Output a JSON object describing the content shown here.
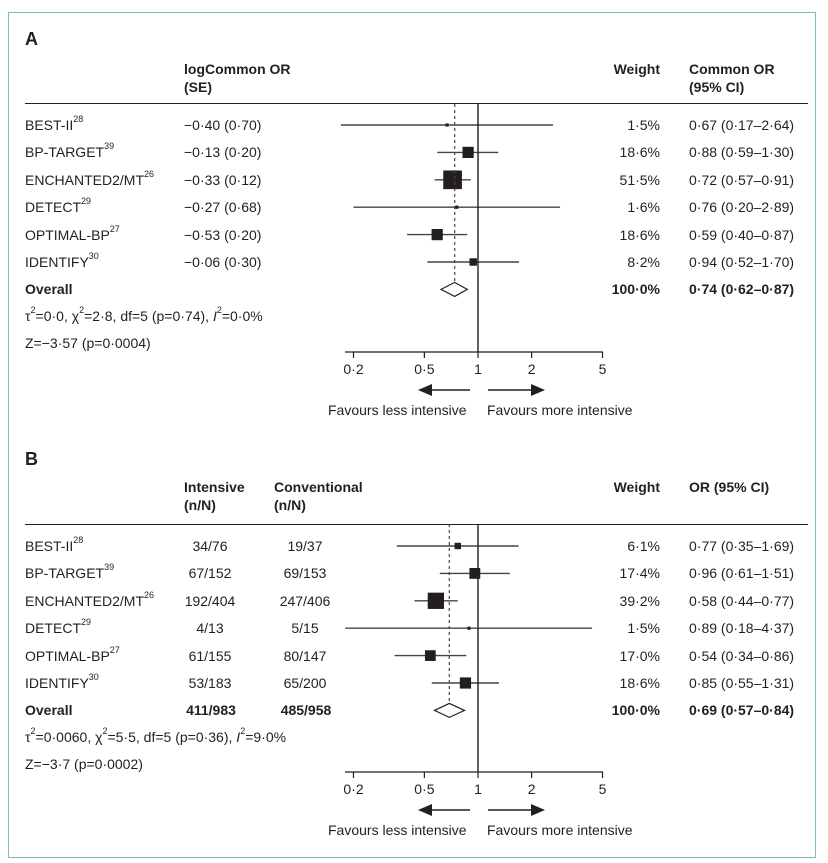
{
  "chart_data": [
    {
      "type": "forest",
      "panel_label": "A",
      "columns": {
        "estimate_header_line1": "logCommon OR",
        "estimate_header_line2": "(SE)",
        "weight_header": "Weight",
        "ci_header_line1": "Common OR",
        "ci_header_line2": "(95% CI)"
      },
      "studies": [
        {
          "name": "BEST-II",
          "ref": "28",
          "estimate": "−0·40 (0·70)",
          "weight": "1·5%",
          "weight_value": 1.5,
          "or_text": "0·67 (0·17–2·64)",
          "or": 0.67,
          "lo": 0.17,
          "hi": 2.64
        },
        {
          "name": "BP-TARGET",
          "ref": "39",
          "estimate": "−0·13 (0·20)",
          "weight": "18·6%",
          "weight_value": 18.6,
          "or_text": "0·88 (0·59–1·30)",
          "or": 0.88,
          "lo": 0.59,
          "hi": 1.3
        },
        {
          "name": "ENCHANTED2/MT",
          "ref": "26",
          "estimate": "−0·33 (0·12)",
          "weight": "51·5%",
          "weight_value": 51.5,
          "or_text": "0·72 (0·57–0·91)",
          "or": 0.72,
          "lo": 0.57,
          "hi": 0.91
        },
        {
          "name": "DETECT",
          "ref": "29",
          "estimate": "−0·27 (0·68)",
          "weight": "1·6%",
          "weight_value": 1.6,
          "or_text": "0·76 (0·20–2·89)",
          "or": 0.76,
          "lo": 0.2,
          "hi": 2.89
        },
        {
          "name": "OPTIMAL-BP",
          "ref": "27",
          "estimate": "−0·53 (0·20)",
          "weight": "18·6%",
          "weight_value": 18.6,
          "or_text": "0·59 (0·40–0·87)",
          "or": 0.59,
          "lo": 0.4,
          "hi": 0.87
        },
        {
          "name": "IDENTIFY",
          "ref": "30",
          "estimate": "−0·06 (0·30)",
          "weight": "8·2%",
          "weight_value": 8.2,
          "or_text": "0·94 (0·52–1·70)",
          "or": 0.94,
          "lo": 0.52,
          "hi": 1.7
        }
      ],
      "overall": {
        "label": "Overall",
        "weight": "100·0%",
        "or_text": "0·74 (0·62–0·87)",
        "or": 0.74,
        "lo": 0.62,
        "hi": 0.87
      },
      "heterogeneity": {
        "tau": "τ",
        "tau_val": "=0·0, ",
        "chi": "χ",
        "chi_val": "=2·8, df=5 (p=0·74), ",
        "i": "I",
        "i_val": "=0·0%"
      },
      "z_test": "Z=−3·57 (p=0·0004)",
      "x_axis": {
        "scale": "log",
        "ticks": [
          0.2,
          0.5,
          1,
          2,
          5
        ],
        "tick_labels": [
          "0·2",
          "0·5",
          "1",
          "2",
          "5"
        ],
        "xlim": [
          0.17,
          5
        ]
      },
      "favours_left": "Favours less intensive",
      "favours_right": "Favours more intensive"
    },
    {
      "type": "forest",
      "panel_label": "B",
      "columns": {
        "intensive_header_line1": "Intensive",
        "intensive_header_line2": "(n/N)",
        "conventional_header_line1": "Conventional",
        "conventional_header_line2": "(n/N)",
        "weight_header": "Weight",
        "ci_header": "OR (95% CI)"
      },
      "studies": [
        {
          "name": "BEST-II",
          "ref": "28",
          "intensive": "34/76",
          "conventional": "19/37",
          "weight": "6·1%",
          "weight_value": 6.1,
          "or_text": "0·77 (0·35–1·69)",
          "or": 0.77,
          "lo": 0.35,
          "hi": 1.69
        },
        {
          "name": "BP-TARGET",
          "ref": "39",
          "intensive": "67/152",
          "conventional": "69/153",
          "weight": "17·4%",
          "weight_value": 17.4,
          "or_text": "0·96 (0·61–1·51)",
          "or": 0.96,
          "lo": 0.61,
          "hi": 1.51
        },
        {
          "name": "ENCHANTED2/MT",
          "ref": "26",
          "intensive": "192/404",
          "conventional": "247/406",
          "weight": "39·2%",
          "weight_value": 39.2,
          "or_text": "0·58 (0·44–0·77)",
          "or": 0.58,
          "lo": 0.44,
          "hi": 0.77
        },
        {
          "name": "DETECT",
          "ref": "29",
          "intensive": "4/13",
          "conventional": "5/15",
          "weight": "1·5%",
          "weight_value": 1.5,
          "or_text": "0·89 (0·18–4·37)",
          "or": 0.89,
          "lo": 0.18,
          "hi": 4.37
        },
        {
          "name": "OPTIMAL-BP",
          "ref": "27",
          "intensive": "61/155",
          "conventional": "80/147",
          "weight": "17·0%",
          "weight_value": 17.0,
          "or_text": "0·54 (0·34–0·86)",
          "or": 0.54,
          "lo": 0.34,
          "hi": 0.86
        },
        {
          "name": "IDENTIFY",
          "ref": "30",
          "intensive": "53/183",
          "conventional": "65/200",
          "weight": "18·6%",
          "weight_value": 18.6,
          "or_text": "0·85 (0·55–1·31)",
          "or": 0.85,
          "lo": 0.55,
          "hi": 1.31
        }
      ],
      "overall": {
        "label": "Overall",
        "intensive": "411/983",
        "conventional": "485/958",
        "weight": "100·0%",
        "or_text": "0·69 (0·57–0·84)",
        "or": 0.69,
        "lo": 0.57,
        "hi": 0.84
      },
      "heterogeneity": {
        "tau": "τ",
        "tau_val": "=0·0060, ",
        "chi": "χ",
        "chi_val": "=5·5, df=5 (p=0·36), ",
        "i": "I",
        "i_val": "=9·0%"
      },
      "z_test": "Z=−3·7 (p=0·0002)",
      "x_axis": {
        "scale": "log",
        "ticks": [
          0.2,
          0.5,
          1,
          2,
          5
        ],
        "tick_labels": [
          "0·2",
          "0·5",
          "1",
          "2",
          "5"
        ],
        "xlim": [
          0.17,
          5
        ]
      },
      "favours_left": "Favours less intensive",
      "favours_right": "Favours more intensive"
    }
  ],
  "colors": {
    "frame": "#7fbf9f",
    "ink": "#231f20"
  }
}
